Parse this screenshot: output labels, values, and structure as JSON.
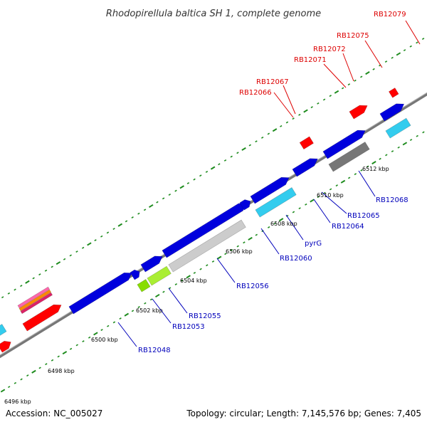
{
  "title": "Rhodopirellula baltica SH 1, complete genome",
  "footer": {
    "accession": "Accession: NC_005027",
    "summary": "Topology: circular; Length: 7,145,576 bp; Genes: 7,405"
  },
  "colors": {
    "backbone": "#888888",
    "tick": "#1e8c1e",
    "label_red": "#dd0000",
    "label_blue": "#0000bb"
  },
  "kbp_labels": [
    "6496 kbp",
    "6498 kbp",
    "6500 kbp",
    "6502 kbp",
    "6504 kbp",
    "6506 kbp",
    "6508 kbp",
    "6510 kbp",
    "6512 kbp"
  ],
  "red_labels": [
    "RB12066",
    "RB12067",
    "RB12071",
    "RB12072",
    "RB12075",
    "RB12079"
  ],
  "blue_labels": [
    "RB12048",
    "RB12053",
    "RB12055",
    "RB12056",
    "RB12060",
    "pyrG",
    "RB12064",
    "RB12065",
    "RB12068"
  ]
}
